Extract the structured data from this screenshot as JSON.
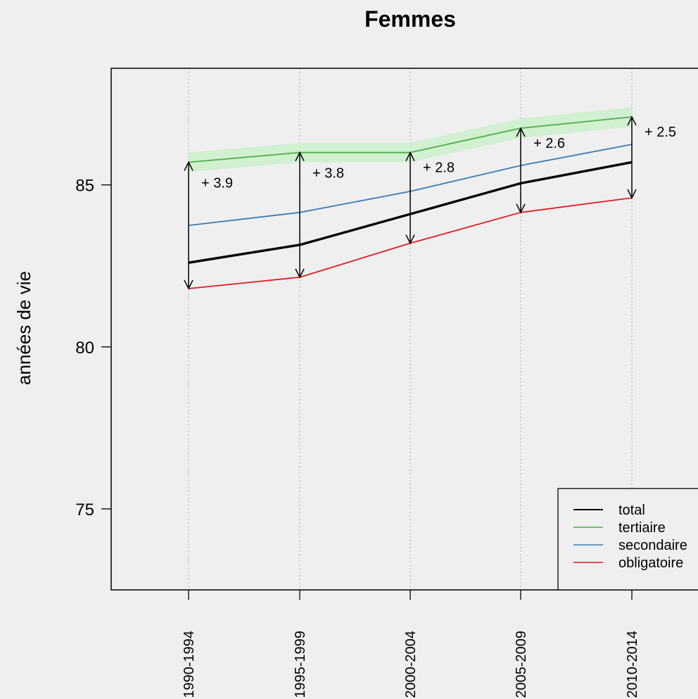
{
  "chart_data": {
    "type": "line",
    "title": "Femmes",
    "xlabel": "",
    "ylabel": "années de vie",
    "categories": [
      "1990-1994",
      "1995-1999",
      "2000-2004",
      "2005-2009",
      "2010-2014"
    ],
    "ylim": [
      72.5,
      88.6
    ],
    "yticks": [
      75,
      80,
      85
    ],
    "grid": "vertical dotted at each category",
    "series": [
      {
        "name": "total",
        "color": "#000000",
        "values": [
          82.6,
          83.15,
          84.1,
          85.05,
          85.7
        ]
      },
      {
        "name": "tertiaire",
        "color": "#4daf4a",
        "values": [
          85.7,
          86.0,
          86.0,
          86.75,
          87.1
        ]
      },
      {
        "name": "secondaire",
        "color": "#377eb8",
        "values": [
          83.75,
          84.15,
          84.8,
          85.6,
          86.25
        ]
      },
      {
        "name": "obligatoire",
        "color": "#e41a1c",
        "values": [
          81.8,
          82.15,
          83.2,
          84.15,
          84.6
        ]
      }
    ],
    "gap_annotations": [
      "+ 3.9",
      "+ 3.8",
      "+ 2.8",
      "+ 2.6",
      "+ 2.5"
    ],
    "legend": {
      "position": "bottom-right",
      "entries": [
        "total",
        "tertiaire",
        "secondaire",
        "obligatoire"
      ]
    }
  }
}
